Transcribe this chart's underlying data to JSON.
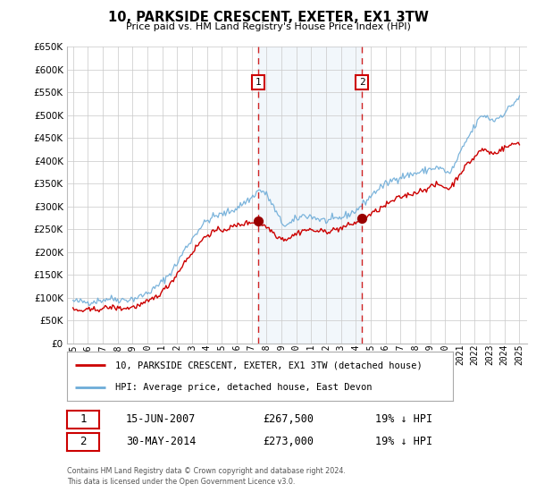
{
  "title": "10, PARKSIDE CRESCENT, EXETER, EX1 3TW",
  "subtitle": "Price paid vs. HM Land Registry's House Price Index (HPI)",
  "ylim": [
    0,
    650000
  ],
  "yticks": [
    0,
    50000,
    100000,
    150000,
    200000,
    250000,
    300000,
    350000,
    400000,
    450000,
    500000,
    550000,
    600000,
    650000
  ],
  "xlim_start": 1994.6,
  "xlim_end": 2025.5,
  "xtick_years": [
    1995,
    1996,
    1997,
    1998,
    1999,
    2000,
    2001,
    2002,
    2003,
    2004,
    2005,
    2006,
    2007,
    2008,
    2009,
    2010,
    2011,
    2012,
    2013,
    2014,
    2015,
    2016,
    2017,
    2018,
    2019,
    2020,
    2021,
    2022,
    2023,
    2024,
    2025
  ],
  "t1_year": 2007.45,
  "t1_price": 267500,
  "t2_year": 2014.41,
  "t2_price": 273000,
  "hpi_color": "#6dacd8",
  "property_color": "#cc0000",
  "marker_color": "#990000",
  "highlight_color": "#ddeeff",
  "grid_color": "#cccccc",
  "bg_color": "#ffffff",
  "legend_property": "10, PARKSIDE CRESCENT, EXETER, EX1 3TW (detached house)",
  "legend_hpi": "HPI: Average price, detached house, East Devon",
  "row1_date": "15-JUN-2007",
  "row1_price": "£267,500",
  "row1_pct": "19% ↓ HPI",
  "row2_date": "30-MAY-2014",
  "row2_price": "£273,000",
  "row2_pct": "19% ↓ HPI",
  "footer1": "Contains HM Land Registry data © Crown copyright and database right 2024.",
  "footer2": "This data is licensed under the Open Government Licence v3.0."
}
